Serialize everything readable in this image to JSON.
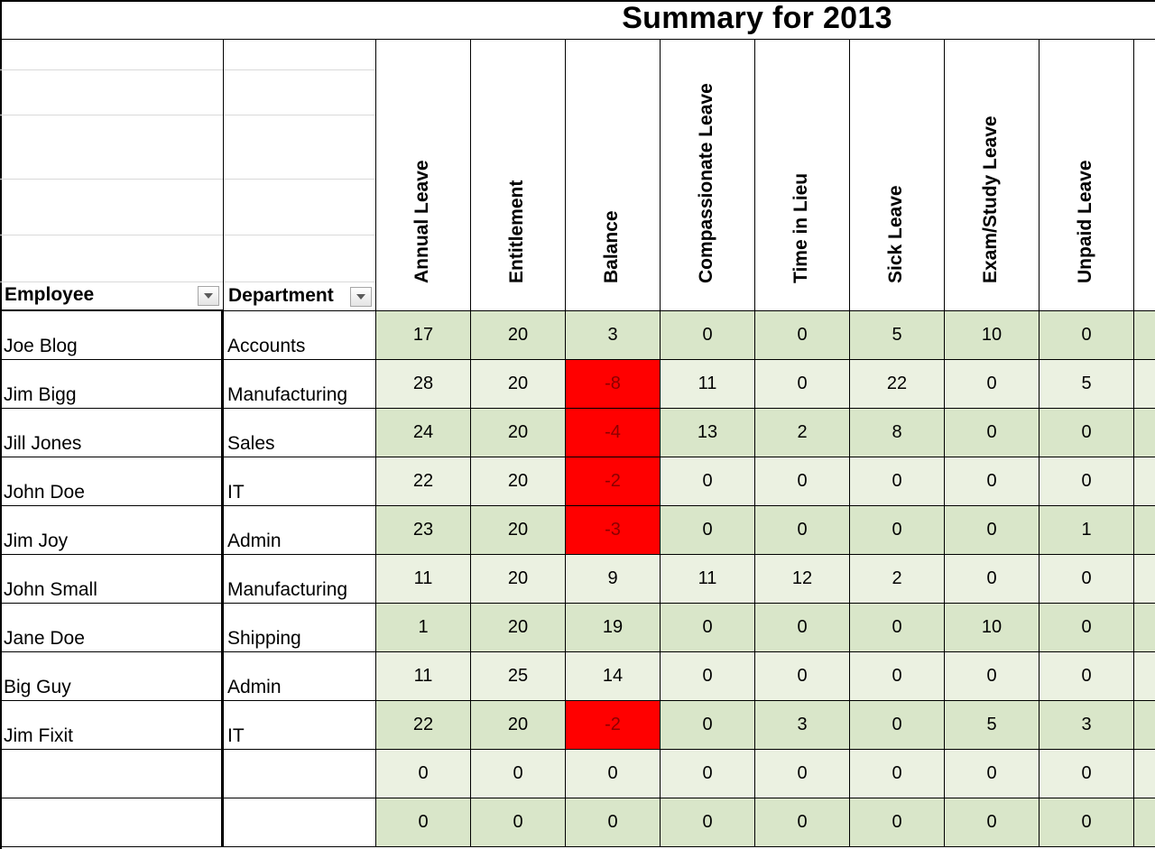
{
  "title": "Summary for 2013",
  "columns": {
    "employee": "Employee",
    "department": "Department",
    "leave": [
      "Annual Leave",
      "Entitlement",
      "Balance",
      "Compassionate Leave",
      "Time in Lieu",
      "Sick Leave",
      "Exam/Study Leave",
      "Unpaid Leave"
    ]
  },
  "icons": {
    "filter": "filter-dropdown-icon"
  },
  "colors": {
    "band_dark": "#d9e6c9",
    "band_light": "#ebf1e1",
    "negative_balance": "#ff0000",
    "negative_text": "#8b0000"
  },
  "rows": [
    {
      "employee": "Joe Blog",
      "department": "Accounts",
      "values": [
        17,
        20,
        3,
        0,
        0,
        5,
        10,
        0
      ]
    },
    {
      "employee": "Jim Bigg",
      "department": "Manufacturing",
      "values": [
        28,
        20,
        -8,
        11,
        0,
        22,
        0,
        5
      ]
    },
    {
      "employee": "Jill Jones",
      "department": "Sales",
      "values": [
        24,
        20,
        -4,
        13,
        2,
        8,
        0,
        0
      ]
    },
    {
      "employee": "John Doe",
      "department": "IT",
      "values": [
        22,
        20,
        -2,
        0,
        0,
        0,
        0,
        0
      ]
    },
    {
      "employee": "Jim Joy",
      "department": "Admin",
      "values": [
        23,
        20,
        -3,
        0,
        0,
        0,
        0,
        1
      ]
    },
    {
      "employee": "John Small",
      "department": "Manufacturing",
      "values": [
        11,
        20,
        9,
        11,
        12,
        2,
        0,
        0
      ]
    },
    {
      "employee": "Jane Doe",
      "department": "Shipping",
      "values": [
        1,
        20,
        19,
        0,
        0,
        0,
        10,
        0
      ]
    },
    {
      "employee": "Big Guy",
      "department": "Admin",
      "values": [
        11,
        25,
        14,
        0,
        0,
        0,
        0,
        0
      ]
    },
    {
      "employee": "Jim Fixit",
      "department": "IT",
      "values": [
        22,
        20,
        -2,
        0,
        3,
        0,
        5,
        3
      ]
    },
    {
      "employee": "",
      "department": "",
      "values": [
        0,
        0,
        0,
        0,
        0,
        0,
        0,
        0
      ]
    },
    {
      "employee": "",
      "department": "",
      "values": [
        0,
        0,
        0,
        0,
        0,
        0,
        0,
        0
      ]
    }
  ]
}
